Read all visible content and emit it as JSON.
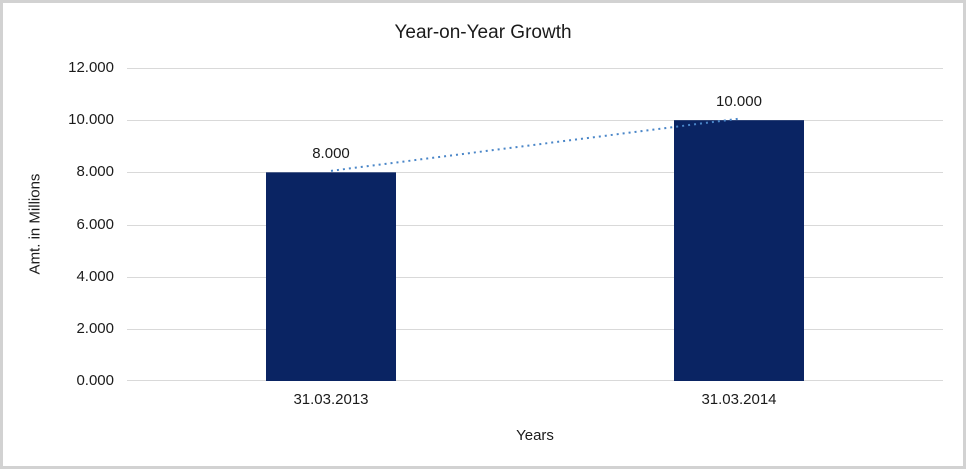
{
  "chart_data": {
    "type": "bar",
    "title": "Year-on-Year Growth",
    "xlabel": "Years",
    "ylabel": "Amt. in Millions",
    "categories": [
      "31.03.2013",
      "31.03.2014"
    ],
    "series": [
      {
        "name": "amount",
        "type": "bar",
        "values": [
          8,
          10
        ],
        "labels": [
          "8.000",
          "10.000"
        ]
      }
    ],
    "trendline": {
      "type": "line",
      "dashed": true,
      "values": [
        8,
        10
      ]
    },
    "ylim": [
      0,
      12
    ],
    "yticks": [
      0,
      2,
      4,
      6,
      8,
      10,
      12
    ],
    "ytick_labels": [
      "0.000",
      "2.000",
      "4.000",
      "6.000",
      "8.000",
      "10.000",
      "12.000"
    ],
    "grid": true,
    "legend": "none",
    "colors": {
      "bar": "#0a2463",
      "trendline": "#4a86c8",
      "gridline": "#d9d9d9",
      "text": "#1b1b1b",
      "frame_border": "#d2d2d2",
      "background": "#ffffff"
    }
  }
}
